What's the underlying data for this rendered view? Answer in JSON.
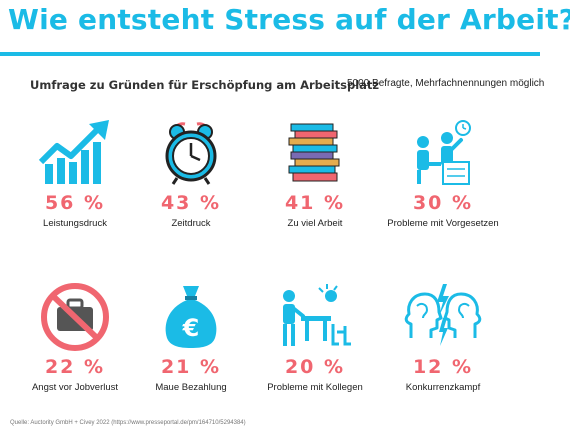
{
  "header": {
    "title": "Wie entsteht Stress auf der Arbeit?",
    "subtitle": "Umfrage zu Gründen für Erschöpfung am Arbeitsplatz",
    "note": "5000 Befragte, Mehrfachnennungen möglich"
  },
  "colors": {
    "accent": "#1bbbe6",
    "percent": "#f06670",
    "warning": "#f06670"
  },
  "items": [
    {
      "percent": "56 %",
      "label": "Leistungsdruck",
      "icon": "growth-chart-icon"
    },
    {
      "percent": "43 %",
      "label": "Zeitdruck",
      "icon": "alarm-clock-icon"
    },
    {
      "percent": "41 %",
      "label": "Zu viel Arbeit",
      "icon": "stack-of-binders-icon"
    },
    {
      "percent": "30 %",
      "label": "Probleme mit Vorgesetzen",
      "icon": "boss-pointing-icon"
    },
    {
      "percent": "22 %",
      "label": "Angst vor Jobverlust",
      "icon": "no-briefcase-icon"
    },
    {
      "percent": "21 %",
      "label": "Maue Bezahlung",
      "icon": "money-bag-icon"
    },
    {
      "percent": "20 %",
      "label": "Probleme mit Kollegen",
      "icon": "colleagues-conflict-icon"
    },
    {
      "percent": "12 %",
      "label": "Konkurrenzkampf",
      "icon": "heads-lightning-icon"
    }
  ],
  "footer": {
    "source": "Quelle: Auctority GmbH + Civey 2022 (https://www.presseportal.de/pm/164710/5294384)"
  }
}
